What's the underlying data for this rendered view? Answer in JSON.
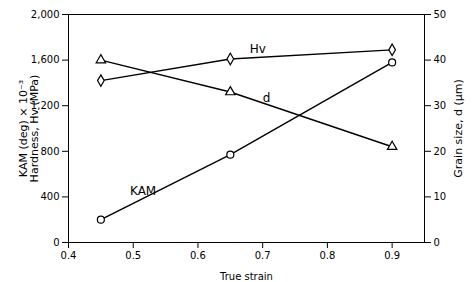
{
  "chart_data": {
    "type": "line",
    "xlabel": "True strain",
    "ylabel": "KAM (deg) × 10⁻³\nHardness, Hv (MPa)",
    "y2label": "Grain size, d (μm)",
    "xlim": [
      0.4,
      0.95
    ],
    "xticks": [
      0.4,
      0.5,
      0.6,
      0.7,
      0.8,
      0.9
    ],
    "ylim": [
      0,
      2000
    ],
    "yticks": [
      0,
      400,
      800,
      1200,
      1600,
      2000
    ],
    "y2lim": [
      0,
      50
    ],
    "y2ticks": [
      0,
      10,
      20,
      30,
      40,
      50
    ],
    "color": "#000000",
    "series": [
      {
        "name": "Hv",
        "marker": "diamond",
        "x": [
          0.45,
          0.65,
          0.9
        ],
        "values": [
          1420,
          1610,
          1690
        ],
        "errors": [
          30,
          30,
          20
        ]
      },
      {
        "name": "KAM",
        "marker": "circle",
        "x": [
          0.45,
          0.65,
          0.9
        ],
        "values": [
          200,
          770,
          1580
        ]
      },
      {
        "name": "d",
        "marker": "triangle",
        "axis": "y2",
        "x": [
          0.45,
          0.65,
          0.9
        ],
        "values": [
          40,
          33,
          21
        ]
      }
    ],
    "annotations": [
      {
        "text": "Hv",
        "x": 0.68,
        "y": 1660
      },
      {
        "text": "KAM",
        "x": 0.495,
        "y": 420
      },
      {
        "text": "d",
        "x": 0.7,
        "y": 1230
      }
    ]
  }
}
